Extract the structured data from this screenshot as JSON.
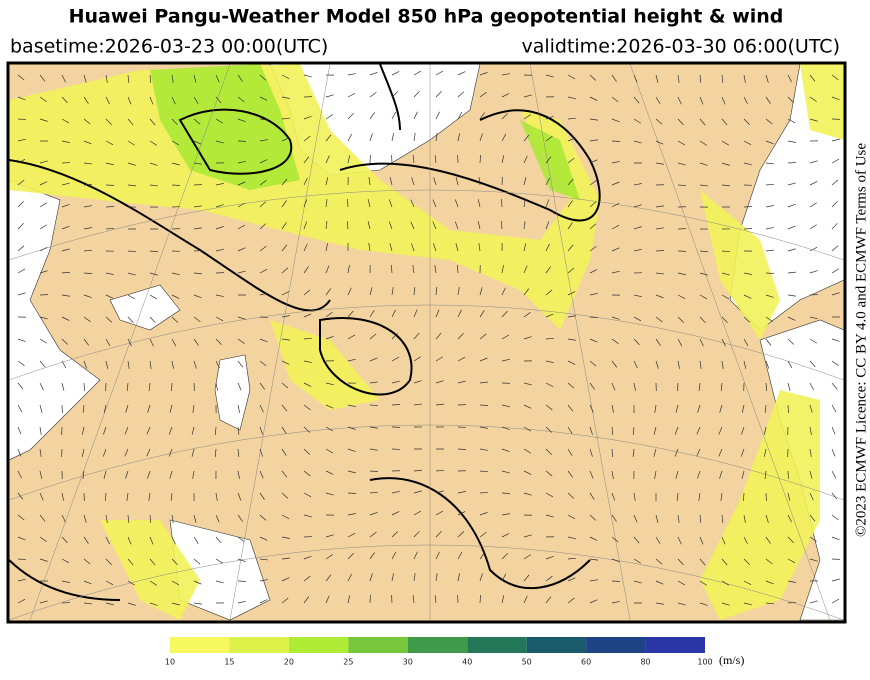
{
  "header": {
    "title": "Huawei Pangu-Weather Model 850 hPa geopotential height & wind",
    "basetime": "basetime:2026-03-23 00:00(UTC)",
    "validtime": "validtime:2026-03-30 06:00(UTC)"
  },
  "licence": "©2023 ECMWF Licence: CC BY 4.0 and ECMWF Terms of Use",
  "colorbar": {
    "ticks": [
      10,
      15,
      20,
      25,
      30,
      40,
      50,
      60,
      80,
      100
    ],
    "colors": [
      "#f7f75e",
      "#dcf24a",
      "#b0ec36",
      "#78c63a",
      "#3f9a4a",
      "#24785a",
      "#1b5a6a",
      "#1d4286",
      "#2b36a8"
    ],
    "unit": "(m/s)"
  }
}
